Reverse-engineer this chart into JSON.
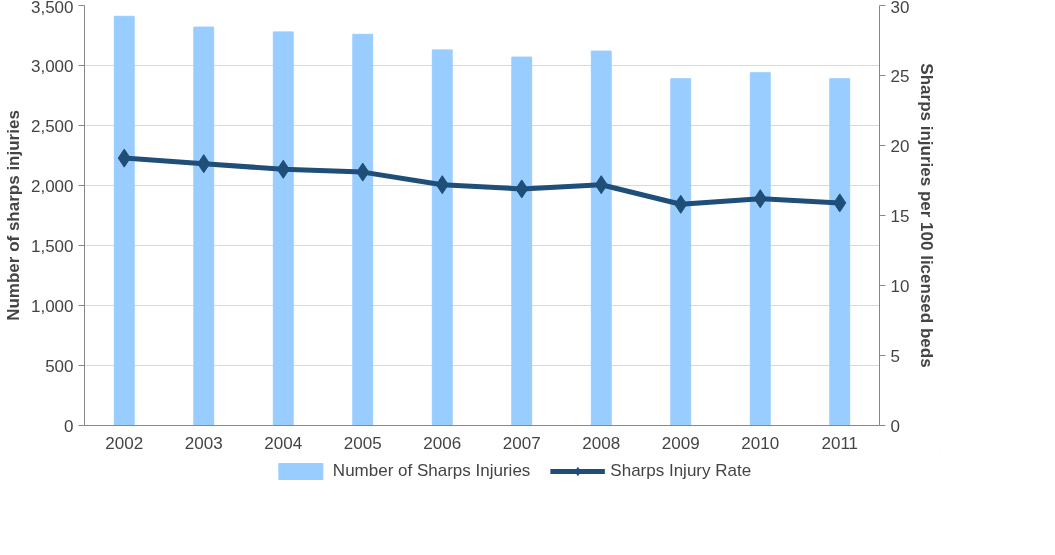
{
  "chart_data": {
    "type": "bar",
    "categories": [
      "2002",
      "2003",
      "2004",
      "2005",
      "2006",
      "2007",
      "2008",
      "2009",
      "2010",
      "2011"
    ],
    "ylabel": "Number of sharps injuries",
    "y2label": "Sharps injuries per 100 licensed beds",
    "ylim": [
      0,
      3500
    ],
    "yticks": [
      {
        "value": 0,
        "label": "0"
      },
      {
        "value": 500,
        "label": "500"
      },
      {
        "value": 1000,
        "label": "1,000"
      },
      {
        "value": 1500,
        "label": "1,500"
      },
      {
        "value": 2000,
        "label": "2,000"
      },
      {
        "value": 2500,
        "label": "2,500"
      },
      {
        "value": 3000,
        "label": "3,000"
      },
      {
        "value": 3500,
        "label": "3,500"
      }
    ],
    "y2lim": [
      0,
      30
    ],
    "y2ticks": [
      0,
      5,
      10,
      15,
      20,
      25,
      30
    ],
    "series": [
      {
        "name": "Number of Sharps Injuries",
        "color": "#99ccff",
        "values": [
          3410,
          3320,
          3280,
          3260,
          3130,
          3070,
          3120,
          2890,
          2940,
          2890
        ]
      },
      {
        "name": "Sharps Injury Rate",
        "type": "line",
        "axis": "y2",
        "color": "#1f4e79",
        "marker": "diamond",
        "values": [
          19.1,
          18.7,
          18.3,
          18.1,
          17.2,
          16.9,
          17.2,
          15.8,
          16.2,
          15.9
        ]
      }
    ],
    "grid": "y",
    "legend": "bottom"
  }
}
